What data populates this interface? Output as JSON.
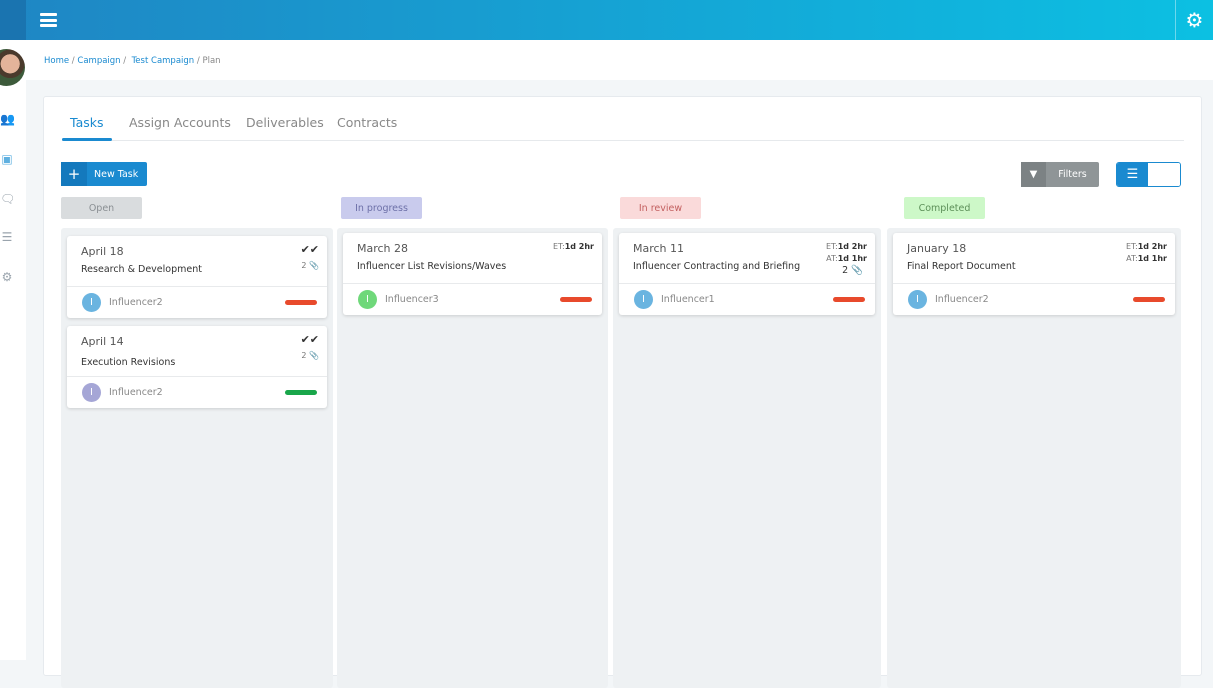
{
  "header": {
    "menu_icon": "hamburger-icon",
    "settings_icon": "gear-icon"
  },
  "breadcrumb": {
    "items": [
      "Home",
      "Campaign",
      "Test Campaign"
    ],
    "current": "Plan"
  },
  "tabs": [
    {
      "label": "Tasks",
      "active": true
    },
    {
      "label": "Assign Accounts"
    },
    {
      "label": "Deliverables"
    },
    {
      "label": "Contracts"
    }
  ],
  "toolbar": {
    "new_task": "New Task",
    "filters": "Filters"
  },
  "columns": [
    {
      "label": "Open",
      "bg": "#d9dcde",
      "fg": "#8a8f93",
      "cards": [
        {
          "date": "April 18",
          "title": "Research & Development",
          "attachments": "2",
          "checks": true,
          "assignee": "Influencer2",
          "initial": "I",
          "avatar_color": "#6ab4e0",
          "priority_color": "#e84a2c"
        },
        {
          "date": "April 14",
          "title": "Execution Revisions",
          "attachments": "2",
          "checks": true,
          "assignee": "Influencer2",
          "initial": "I",
          "avatar_color": "#a5a6d6",
          "priority_color": "#19a64a"
        }
      ]
    },
    {
      "label": "In progress",
      "bg": "#c9cbed",
      "fg": "#6d70a8",
      "cards": [
        {
          "date": "March 28",
          "title": "Influencer List Revisions/Waves",
          "et_label": "ET:",
          "et": "1d 2hr",
          "assignee": "Influencer3",
          "initial": "I",
          "avatar_color": "#6fd87a",
          "priority_color": "#e84a2c"
        }
      ]
    },
    {
      "label": "In review",
      "bg": "#fadada",
      "fg": "#c36060",
      "cards": [
        {
          "date": "March 11",
          "title": "Influencer Contracting and Briefing",
          "et_label": "ET:",
          "et": "1d 2hr",
          "at_label": "AT:",
          "at": "1d 1hr",
          "attachments": "2",
          "assignee": "Influencer1",
          "initial": "I",
          "avatar_color": "#6ab4e0",
          "priority_color": "#e84a2c"
        }
      ]
    },
    {
      "label": "Completed",
      "bg": "#cdf8c8",
      "fg": "#5c8f58",
      "cards": [
        {
          "date": "January 18",
          "title": "Final Report Document",
          "et_label": "ET:",
          "et": "1d 2hr",
          "at_label": "AT:",
          "at": "1d 1hr",
          "assignee": "Influencer2",
          "initial": "I",
          "avatar_color": "#6ab4e0",
          "priority_color": "#e84a2c"
        }
      ]
    }
  ]
}
